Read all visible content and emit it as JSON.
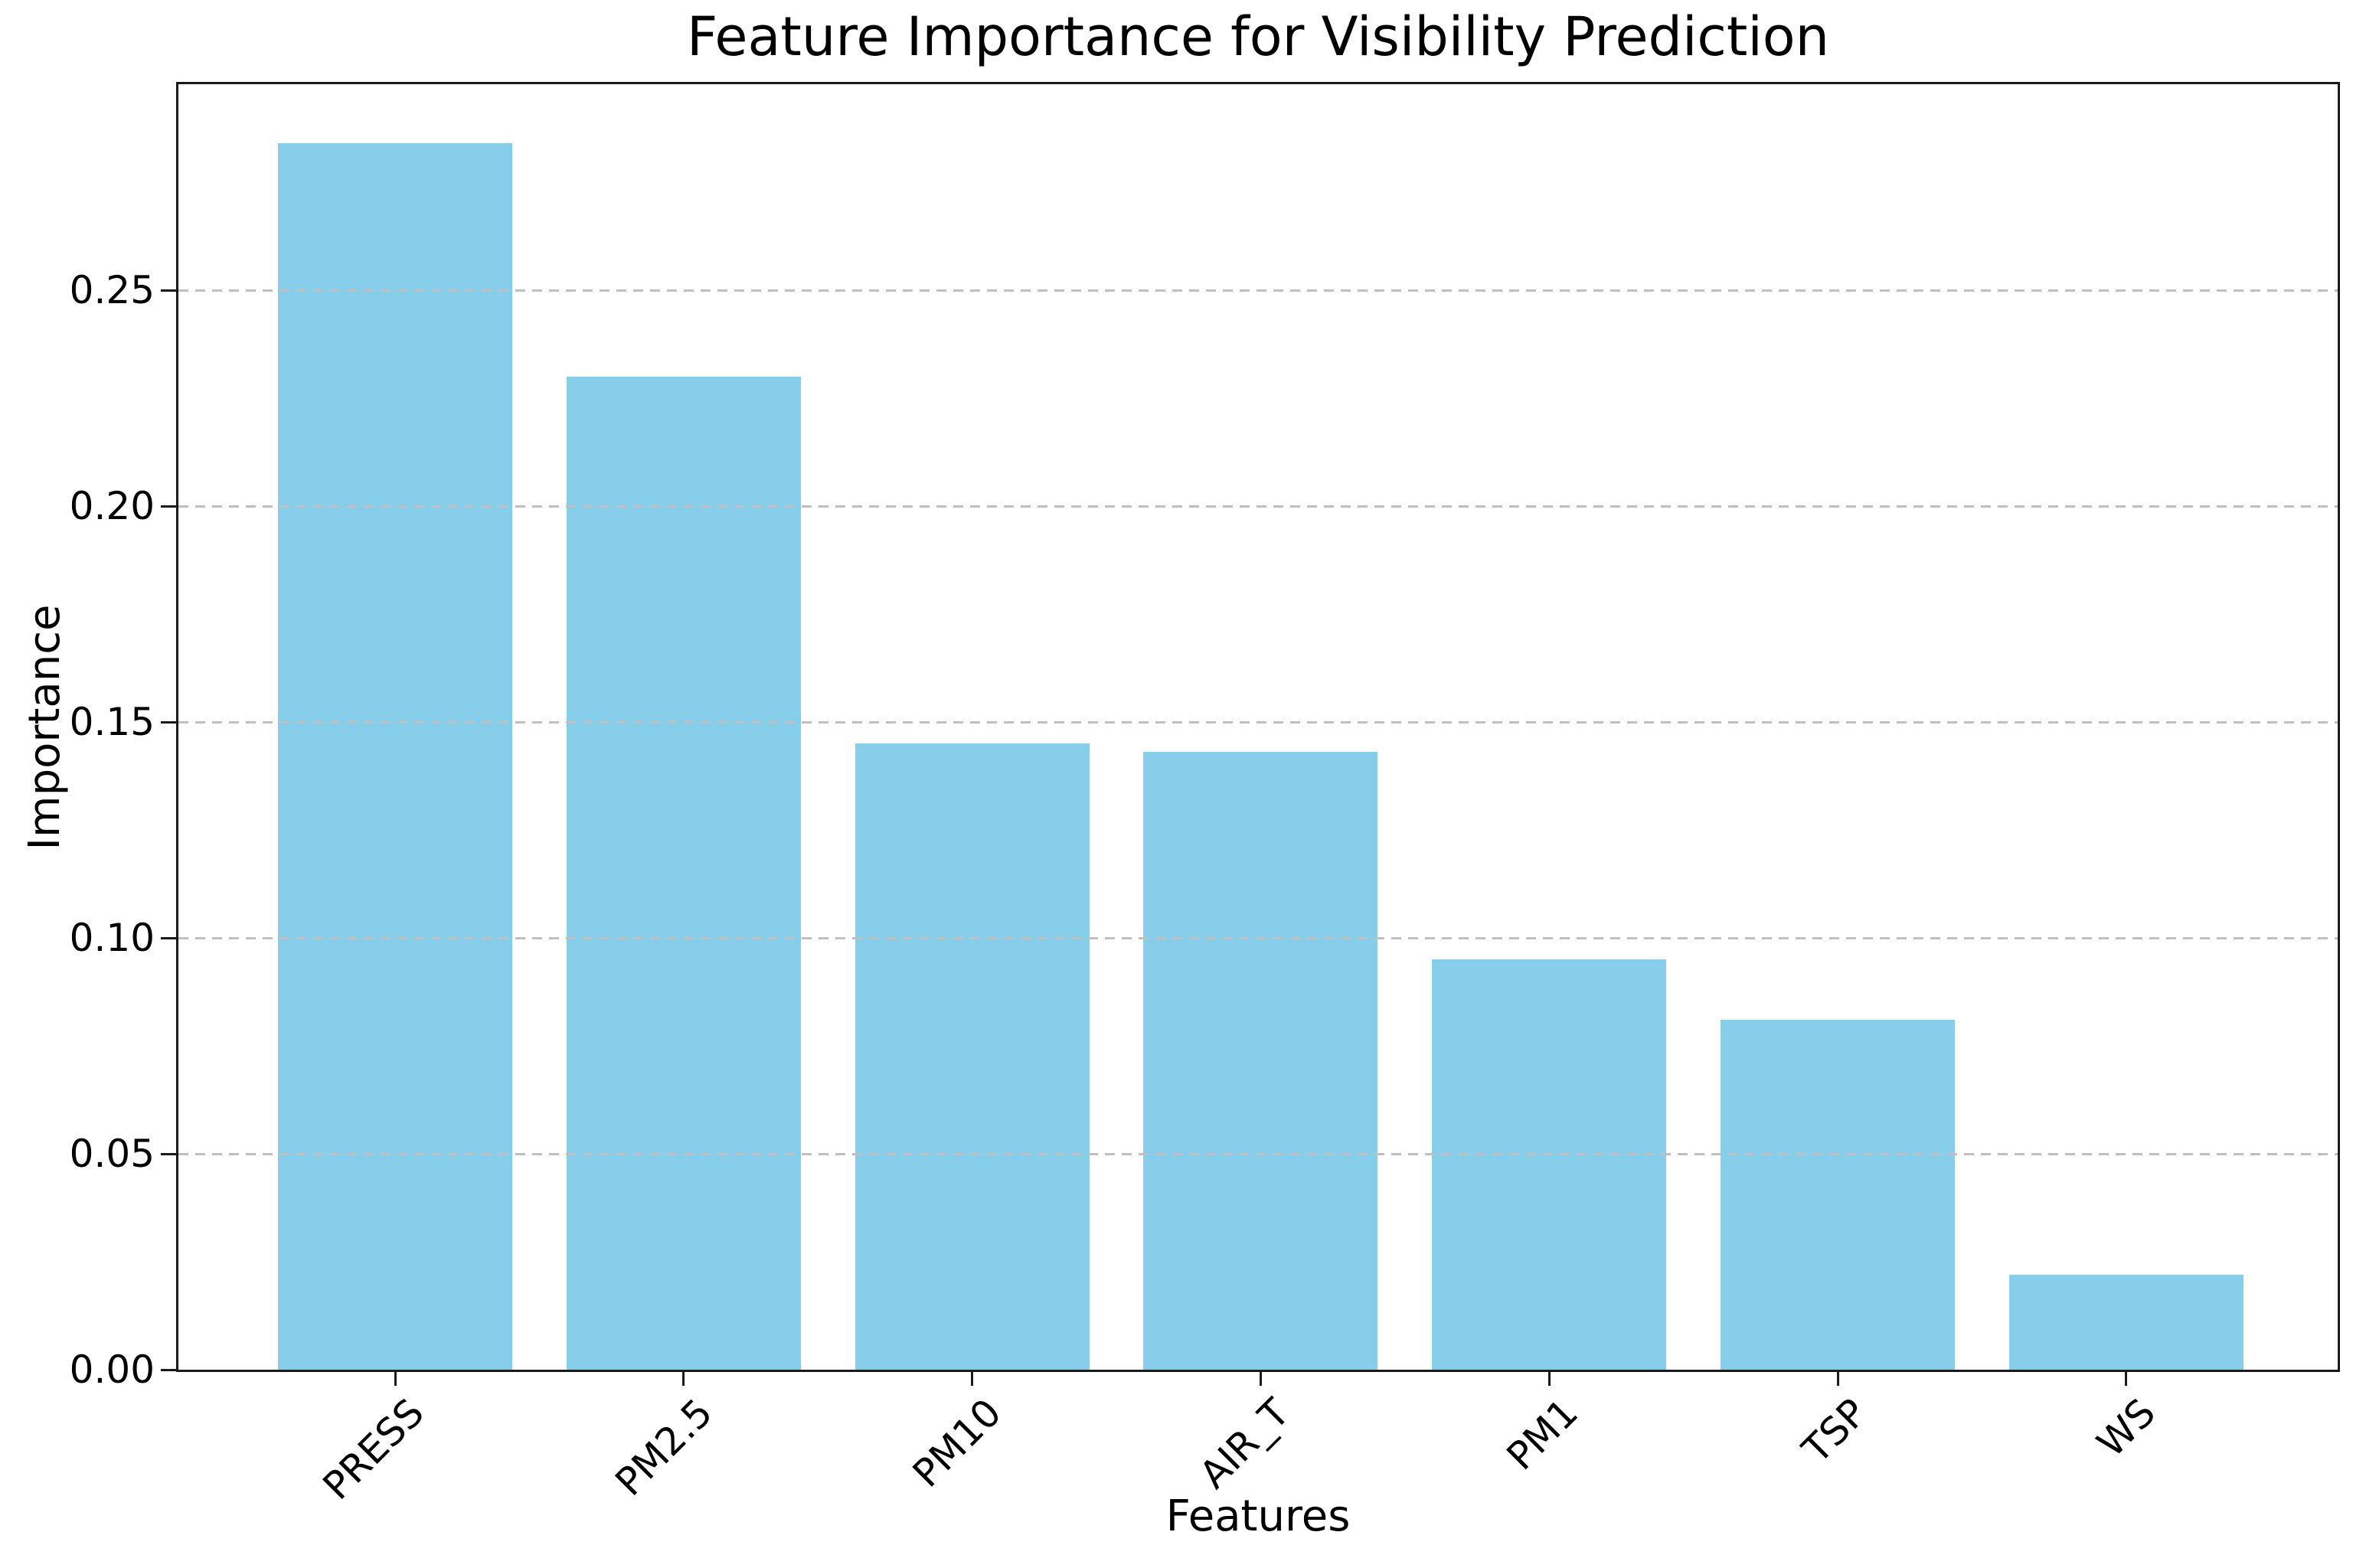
{
  "chart_data": {
    "type": "bar",
    "title": "Feature Importance for Visibility Prediction",
    "xlabel": "Features",
    "ylabel": "Importance",
    "categories": [
      "PRESS",
      "PM2.5",
      "PM10",
      "AIR_T",
      "PM1",
      "TSP",
      "WS"
    ],
    "values": [
      0.284,
      0.23,
      0.145,
      0.143,
      0.095,
      0.081,
      0.022
    ],
    "ytick_labels": [
      "0.00",
      "0.05",
      "0.10",
      "0.15",
      "0.20",
      "0.25"
    ],
    "ytick_values": [
      0.0,
      0.05,
      0.1,
      0.15,
      0.2,
      0.25
    ],
    "ylim": [
      0,
      0.2987
    ],
    "grid": "horizontal-dashed",
    "grid_above_bars": true,
    "legend": null,
    "xtick_rotation_deg": 45,
    "bar_color": "#87CEEB",
    "grid_color": "#c0c0c0",
    "spine_color": "#1a1a1a",
    "text_color": "#000000",
    "background_color": "#ffffff"
  }
}
